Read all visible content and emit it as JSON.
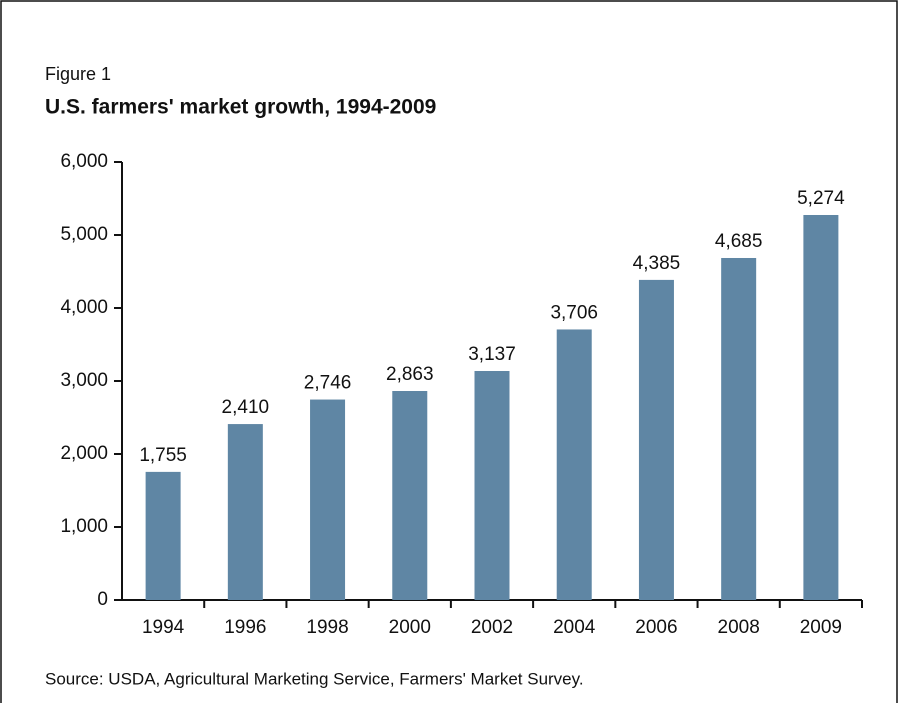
{
  "chart_data": {
    "type": "bar",
    "figure_label": "Figure 1",
    "title": "U.S. farmers' market growth, 1994-2009",
    "source": "Source: USDA, Agricultural Marketing Service, Farmers' Market Survey.",
    "categories": [
      "1994",
      "1996",
      "1998",
      "2000",
      "2002",
      "2004",
      "2006",
      "2008",
      "2009"
    ],
    "values": [
      1755,
      2410,
      2746,
      2863,
      3137,
      3706,
      4385,
      4685,
      5274
    ],
    "value_labels": [
      "1,755",
      "2,410",
      "2,746",
      "2,863",
      "3,137",
      "3,706",
      "4,385",
      "4,685",
      "5,274"
    ],
    "color": "#5f86a4",
    "ylim": [
      0,
      6000
    ],
    "yticks": [
      0,
      {
        "value": 1000,
        "label": "1,000"
      },
      {
        "value": 2000,
        "label": "2,000"
      },
      {
        "value": 3000,
        "label": "3,000"
      },
      {
        "value": 4000,
        "label": "4,000"
      },
      {
        "value": 5000,
        "label": "5,000"
      },
      {
        "value": 6000,
        "label": "6,000"
      }
    ],
    "grid": false
  }
}
